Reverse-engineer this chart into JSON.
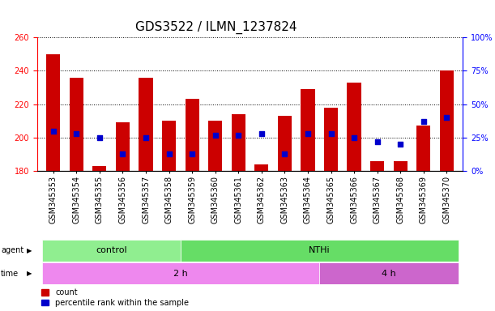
{
  "title": "GDS3522 / ILMN_1237824",
  "samples": [
    "GSM345353",
    "GSM345354",
    "GSM345355",
    "GSM345356",
    "GSM345357",
    "GSM345358",
    "GSM345359",
    "GSM345360",
    "GSM345361",
    "GSM345362",
    "GSM345363",
    "GSM345364",
    "GSM345365",
    "GSM345366",
    "GSM345367",
    "GSM345368",
    "GSM345369",
    "GSM345370"
  ],
  "counts": [
    250,
    236,
    183,
    209,
    236,
    210,
    223,
    210,
    214,
    184,
    213,
    229,
    218,
    233,
    186,
    186,
    207,
    240
  ],
  "percentile_ranks": [
    30,
    28,
    25,
    13,
    25,
    13,
    13,
    27,
    27,
    28,
    13,
    28,
    28,
    25,
    22,
    20,
    37,
    40
  ],
  "ymin": 180,
  "ymax": 260,
  "yticks": [
    180,
    200,
    220,
    240,
    260
  ],
  "right_yticks": [
    0,
    25,
    50,
    75,
    100
  ],
  "bar_color": "#cc0000",
  "dot_color": "#0000cc",
  "bar_width": 0.6,
  "agent_groups": [
    {
      "label": "control",
      "start": 0,
      "end": 6,
      "color": "#90ee90"
    },
    {
      "label": "NTHi",
      "start": 6,
      "end": 18,
      "color": "#66dd66"
    }
  ],
  "time_groups": [
    {
      "label": "2 h",
      "start": 0,
      "end": 12,
      "color": "#ee88ee"
    },
    {
      "label": "4 h",
      "start": 12,
      "end": 18,
      "color": "#cc66cc"
    }
  ],
  "legend_items": [
    {
      "label": "count",
      "color": "#cc0000"
    },
    {
      "label": "percentile rank within the sample",
      "color": "#0000cc"
    }
  ],
  "title_fontsize": 11,
  "tick_fontsize": 7,
  "label_fontsize": 8,
  "strip_fontsize": 8
}
